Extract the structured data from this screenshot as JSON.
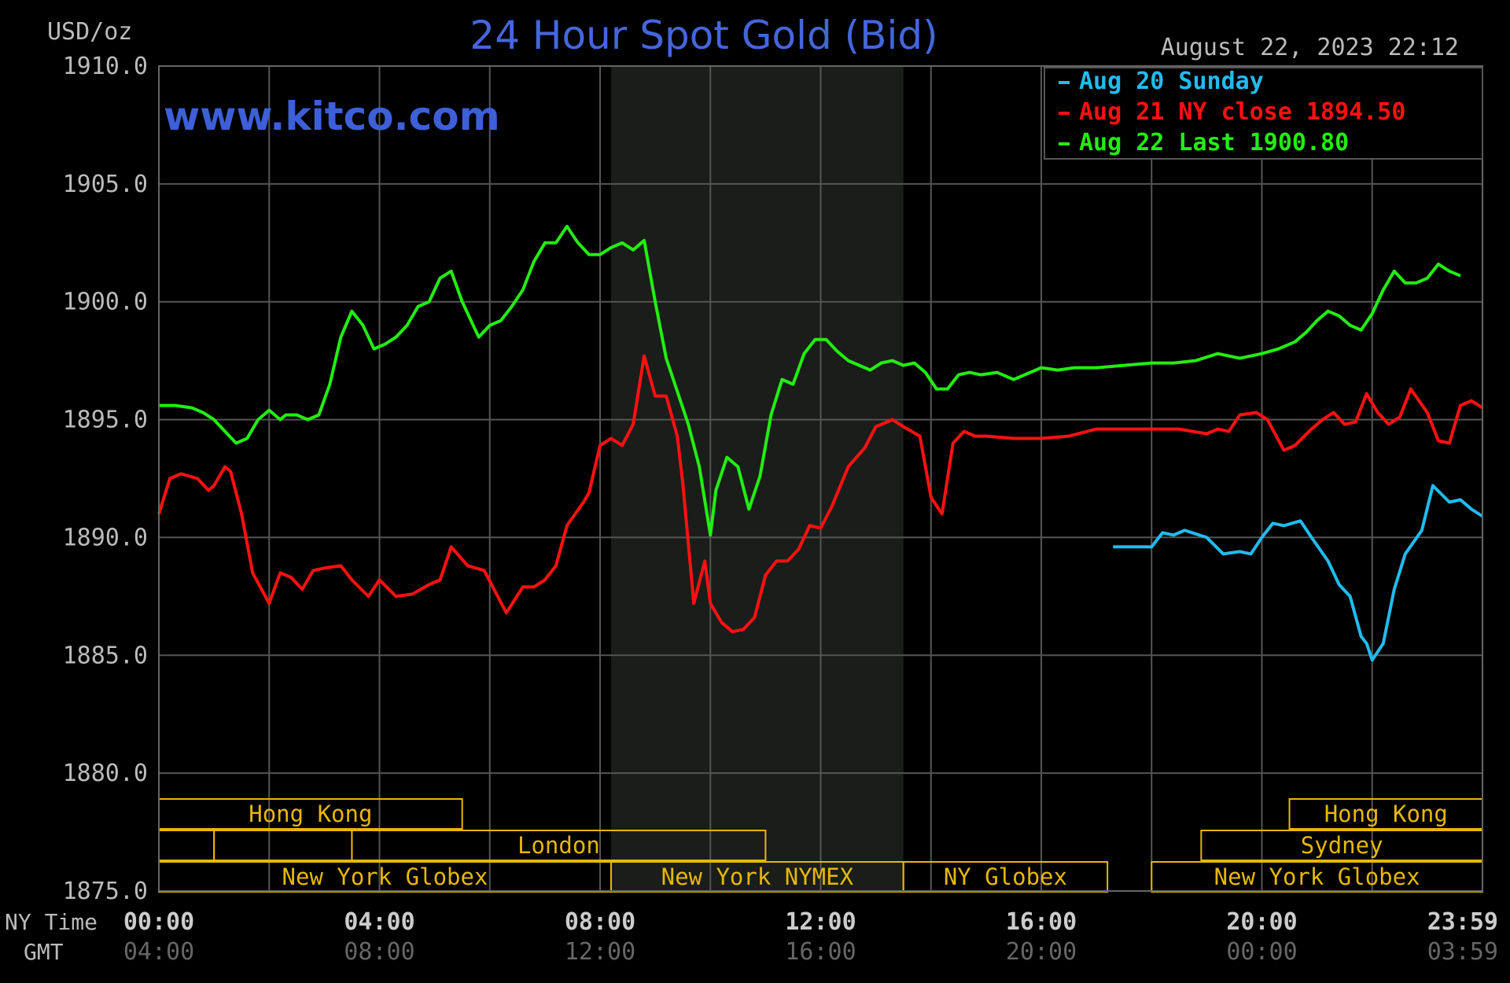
{
  "chart_data": {
    "type": "line",
    "title": "24 Hour Spot Gold (Bid)",
    "ylabel": "USD/oz",
    "website": "www.kitco.com",
    "timestamp": "August 22, 2023 22:12",
    "ylim": [
      1875,
      1910
    ],
    "yticks": [
      "1910.0",
      "1905.0",
      "1900.0",
      "1895.0",
      "1890.0",
      "1885.0",
      "1880.0",
      "1875.0"
    ],
    "xlim_hours": [
      0,
      24
    ],
    "x_row_labels": [
      "NY Time",
      "GMT"
    ],
    "xticks_ny": [
      "00:00",
      "04:00",
      "08:00",
      "12:00",
      "16:00",
      "20:00",
      "23:59"
    ],
    "xticks_gmt": [
      "04:00",
      "08:00",
      "12:00",
      "16:00",
      "20:00",
      "00:00",
      "03:59"
    ],
    "grid": true,
    "legend_position": "top-right",
    "highlight_band_hours": [
      8.2,
      13.5
    ],
    "series": [
      {
        "name": "Aug 20 Sunday",
        "legend_label": "Aug 20 Sunday",
        "color": "#22bbee",
        "x": [
          17.3,
          18.0,
          18.2,
          18.4,
          18.6,
          19.0,
          19.3,
          19.6,
          19.8,
          20.0,
          20.2,
          20.4,
          20.7,
          20.9,
          21.2,
          21.4,
          21.6,
          21.8,
          21.9,
          22.0,
          22.2,
          22.4,
          22.6,
          22.9,
          23.1,
          23.4,
          23.6,
          23.8,
          24.0
        ],
        "y": [
          1889.6,
          1889.6,
          1890.2,
          1890.1,
          1890.3,
          1890.0,
          1889.3,
          1889.4,
          1889.3,
          1890.0,
          1890.6,
          1890.5,
          1890.7,
          1890.0,
          1889.0,
          1888.0,
          1887.5,
          1885.8,
          1885.5,
          1884.8,
          1885.5,
          1887.8,
          1889.3,
          1890.3,
          1892.2,
          1891.5,
          1891.6,
          1891.2,
          1890.9
        ]
      },
      {
        "name": "Aug 21 NY close",
        "legend_label": "Aug 21 NY close 1894.50",
        "legend_value": "1894.50",
        "color": "#ff1111",
        "x": [
          0.0,
          0.2,
          0.4,
          0.7,
          0.9,
          1.0,
          1.2,
          1.3,
          1.5,
          1.7,
          2.0,
          2.2,
          2.4,
          2.6,
          2.8,
          3.0,
          3.3,
          3.5,
          3.8,
          4.0,
          4.3,
          4.6,
          4.9,
          5.1,
          5.3,
          5.6,
          5.9,
          6.1,
          6.3,
          6.6,
          6.8,
          7.0,
          7.2,
          7.4,
          7.7,
          7.8,
          8.0,
          8.2,
          8.4,
          8.6,
          8.8,
          9.0,
          9.2,
          9.4,
          9.5,
          9.7,
          9.9,
          10.0,
          10.2,
          10.4,
          10.6,
          10.8,
          11.0,
          11.2,
          11.4,
          11.6,
          11.8,
          12.0,
          12.2,
          12.5,
          12.8,
          13.0,
          13.3,
          13.5,
          13.8,
          14.0,
          14.2,
          14.4,
          14.6,
          14.8,
          15.0,
          15.5,
          16.0,
          16.5,
          17.0,
          17.5,
          18.0,
          18.5,
          19.0,
          19.2,
          19.4,
          19.6,
          19.9,
          20.1,
          20.4,
          20.6,
          20.9,
          21.1,
          21.3,
          21.5,
          21.7,
          21.9,
          22.1,
          22.3,
          22.5,
          22.7,
          23.0,
          23.2,
          23.4,
          23.6,
          23.8,
          24.0
        ],
        "y": [
          1891.0,
          1892.5,
          1892.7,
          1892.5,
          1892.0,
          1892.2,
          1893.0,
          1892.8,
          1891.0,
          1888.5,
          1887.2,
          1888.5,
          1888.3,
          1887.8,
          1888.6,
          1888.7,
          1888.8,
          1888.2,
          1887.5,
          1888.2,
          1887.5,
          1887.6,
          1888.0,
          1888.2,
          1889.6,
          1888.8,
          1888.6,
          1887.7,
          1886.8,
          1887.9,
          1887.9,
          1888.2,
          1888.8,
          1890.5,
          1891.5,
          1891.9,
          1893.9,
          1894.2,
          1893.9,
          1894.8,
          1897.7,
          1896.0,
          1896.0,
          1894.3,
          1892.3,
          1887.2,
          1889.0,
          1887.2,
          1886.4,
          1886.0,
          1886.1,
          1886.6,
          1888.4,
          1889.0,
          1889.0,
          1889.5,
          1890.5,
          1890.4,
          1891.3,
          1893.0,
          1893.8,
          1894.7,
          1895.0,
          1894.7,
          1894.3,
          1891.7,
          1891.0,
          1894.0,
          1894.5,
          1894.3,
          1894.3,
          1894.2,
          1894.2,
          1894.3,
          1894.6,
          1894.6,
          1894.6,
          1894.6,
          1894.4,
          1894.6,
          1894.5,
          1895.2,
          1895.3,
          1895.0,
          1893.7,
          1893.9,
          1894.6,
          1895.0,
          1895.3,
          1894.8,
          1894.9,
          1896.1,
          1895.3,
          1894.8,
          1895.1,
          1896.3,
          1895.3,
          1894.1,
          1894.0,
          1895.6,
          1895.8,
          1895.5
        ]
      },
      {
        "name": "Aug 22 Last",
        "legend_label": "Aug 22 Last 1900.80",
        "legend_value": "1900.80",
        "color": "#22ee11",
        "x": [
          0.0,
          0.3,
          0.6,
          0.8,
          1.0,
          1.2,
          1.4,
          1.6,
          1.8,
          2.0,
          2.2,
          2.3,
          2.5,
          2.7,
          2.9,
          3.1,
          3.3,
          3.5,
          3.7,
          3.9,
          4.1,
          4.3,
          4.5,
          4.7,
          4.9,
          5.1,
          5.3,
          5.5,
          5.8,
          6.0,
          6.2,
          6.4,
          6.6,
          6.8,
          7.0,
          7.2,
          7.4,
          7.6,
          7.8,
          8.0,
          8.2,
          8.4,
          8.6,
          8.8,
          9.0,
          9.2,
          9.4,
          9.6,
          9.8,
          10.0,
          10.1,
          10.3,
          10.5,
          10.7,
          10.9,
          11.1,
          11.3,
          11.5,
          11.7,
          11.9,
          12.1,
          12.3,
          12.5,
          12.7,
          12.9,
          13.1,
          13.3,
          13.5,
          13.7,
          13.9,
          14.1,
          14.3,
          14.5,
          14.7,
          14.9,
          15.2,
          15.5,
          15.8,
          16.0,
          16.3,
          16.6,
          17.0,
          17.5,
          18.0,
          18.4,
          18.8,
          19.2,
          19.6,
          20.0,
          20.3,
          20.6,
          20.8,
          21.0,
          21.2,
          21.4,
          21.6,
          21.8,
          22.0,
          22.2,
          22.4,
          22.6,
          22.8,
          23.0,
          23.2,
          23.4,
          23.6
        ],
        "y": [
          1895.6,
          1895.6,
          1895.5,
          1895.3,
          1895.0,
          1894.5,
          1894.0,
          1894.2,
          1895.0,
          1895.4,
          1895.0,
          1895.2,
          1895.2,
          1895.0,
          1895.2,
          1896.5,
          1898.5,
          1899.6,
          1899.0,
          1898.0,
          1898.2,
          1898.5,
          1899.0,
          1899.8,
          1900.0,
          1901.0,
          1901.3,
          1900.0,
          1898.5,
          1899.0,
          1899.2,
          1899.8,
          1900.5,
          1901.7,
          1902.5,
          1902.5,
          1903.2,
          1902.5,
          1902.0,
          1902.0,
          1902.3,
          1902.5,
          1902.2,
          1902.6,
          1900.0,
          1897.6,
          1896.2,
          1894.8,
          1893.0,
          1890.1,
          1892.0,
          1893.4,
          1893.0,
          1891.2,
          1892.6,
          1895.2,
          1896.7,
          1896.5,
          1897.8,
          1898.4,
          1898.4,
          1897.9,
          1897.5,
          1897.3,
          1897.1,
          1897.4,
          1897.5,
          1897.3,
          1897.4,
          1897.0,
          1896.3,
          1896.3,
          1896.9,
          1897.0,
          1896.9,
          1897.0,
          1896.7,
          1897.0,
          1897.2,
          1897.1,
          1897.2,
          1897.2,
          1897.3,
          1897.4,
          1897.4,
          1897.5,
          1897.8,
          1897.6,
          1897.8,
          1898.0,
          1898.3,
          1898.7,
          1899.2,
          1899.6,
          1899.4,
          1899.0,
          1898.8,
          1899.5,
          1900.5,
          1901.3,
          1900.8,
          1900.8,
          1901.0,
          1901.6,
          1901.3,
          1901.1
        ]
      }
    ],
    "sessions": [
      {
        "label": "Hong Kong",
        "row": 0,
        "start": 0.0,
        "end": 5.5
      },
      {
        "label": "London",
        "row": 1,
        "start": 3.5,
        "end": 11.0
      },
      {
        "label": "New York Globex",
        "row": 2,
        "start": 0.0,
        "end": 8.2
      },
      {
        "label": "New York NYMEX",
        "row": 2,
        "start": 8.2,
        "end": 13.5
      },
      {
        "label": "NY Globex",
        "row": 2,
        "start": 13.5,
        "end": 17.2
      },
      {
        "label": "Hong Kong",
        "row": 0,
        "start": 20.5,
        "end": 24.0
      },
      {
        "label": "Sydney",
        "row": 1,
        "start": 18.9,
        "end": 24.0
      },
      {
        "label": "New York Globex",
        "row": 2,
        "start": 18.0,
        "end": 24.0
      }
    ],
    "session_fillers": [
      {
        "row": 1,
        "start": 0.0,
        "end": 1.0
      },
      {
        "row": 1,
        "start": 1.0,
        "end": 3.5
      }
    ],
    "colors": {
      "background": "#000000",
      "grid": "#555555",
      "axis_text": "#bbbbbb",
      "title": "#4466dd",
      "session_box": "#e6b800",
      "band": "#1a1d1a"
    }
  }
}
